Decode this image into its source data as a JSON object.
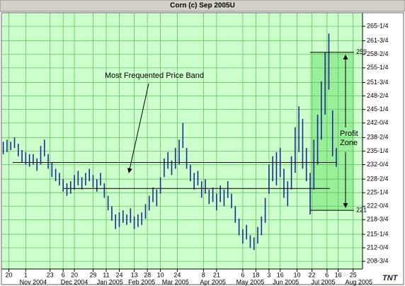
{
  "chart_data": {
    "type": "hilo",
    "title": "Corn (c) Sep 2005U",
    "color": "#1c2c94",
    "grid": true,
    "grid_color": "#5fc25f",
    "background": "#ccffcc",
    "x": [
      1,
      3,
      5,
      7,
      9,
      11,
      13,
      15,
      17,
      19,
      21,
      23,
      25,
      27,
      29,
      31,
      33,
      35,
      37,
      39,
      41,
      43,
      45,
      47,
      49,
      51,
      53,
      55,
      57,
      59,
      61,
      63,
      65,
      67,
      69,
      71,
      73,
      75,
      77,
      79,
      81,
      83,
      85,
      87,
      89,
      91,
      93,
      95,
      97,
      99,
      101,
      103,
      105,
      107,
      109,
      111,
      113,
      115,
      117,
      119,
      121,
      123,
      125,
      127,
      129,
      131,
      133,
      135,
      137,
      139,
      141,
      143,
      145,
      147,
      149,
      151,
      153,
      155,
      157,
      159,
      161,
      163,
      165,
      167,
      169,
      171,
      173,
      175,
      177,
      179
    ],
    "low": [
      234.5,
      235,
      235.5,
      236,
      234,
      232.5,
      232,
      231.5,
      232,
      230.5,
      232,
      234,
      231,
      229,
      228,
      227,
      225.5,
      224.5,
      225,
      226,
      227,
      226,
      227,
      228,
      226.5,
      225.5,
      227,
      224,
      221,
      218.5,
      216.5,
      217,
      218,
      217.5,
      218,
      216.5,
      217,
      217.5,
      219,
      221,
      223,
      222,
      225,
      229,
      231,
      229.5,
      231,
      232,
      236,
      231,
      228,
      226,
      227,
      224,
      225,
      222.5,
      223,
      221,
      223,
      222,
      224,
      221.5,
      218,
      215,
      213,
      214,
      212,
      211.5,
      213,
      215,
      218,
      225,
      228,
      227,
      229,
      224,
      222,
      226,
      230,
      235,
      231,
      228,
      220,
      226,
      232,
      238,
      244,
      250,
      234,
      231.5
    ],
    "high": [
      237.5,
      238,
      237.5,
      238.5,
      237,
      235.5,
      235,
      234.5,
      234.5,
      233.5,
      236.5,
      238,
      234.5,
      232.5,
      231,
      230,
      228.5,
      227.5,
      228,
      229.5,
      230.5,
      229,
      230,
      231,
      229.5,
      228.5,
      230,
      227.5,
      224.5,
      222,
      220,
      220.5,
      221,
      220,
      221.5,
      219.5,
      220,
      220.5,
      222.5,
      224.5,
      226.5,
      226,
      229,
      233.5,
      235,
      233,
      236,
      238,
      242,
      236,
      232,
      230,
      230.5,
      228,
      228.5,
      226,
      226.5,
      225,
      227,
      226,
      228,
      225,
      222,
      219,
      216.5,
      217.5,
      215,
      214.5,
      217,
      219.5,
      224,
      232,
      234,
      235,
      236,
      231,
      228,
      234,
      241,
      246,
      243,
      236,
      230,
      238,
      244,
      252,
      259,
      263.5,
      245,
      236
    ],
    "xlim": [
      0,
      193
    ],
    "xticks": [
      {
        "value": 4,
        "label": "20"
      },
      {
        "value": 13,
        "label": "1"
      },
      {
        "value": 26,
        "label": "23"
      },
      {
        "value": 33,
        "label": "6"
      },
      {
        "value": 39,
        "label": "20"
      },
      {
        "value": 49,
        "label": "29"
      },
      {
        "value": 56,
        "label": "11"
      },
      {
        "value": 63,
        "label": "24"
      },
      {
        "value": 71,
        "label": "13"
      },
      {
        "value": 78,
        "label": "28"
      },
      {
        "value": 85,
        "label": "10"
      },
      {
        "value": 94,
        "label": "24"
      },
      {
        "value": 108,
        "label": "8"
      },
      {
        "value": 115,
        "label": "21"
      },
      {
        "value": 129,
        "label": "6"
      },
      {
        "value": 136,
        "label": "18"
      },
      {
        "value": 143,
        "label": "3"
      },
      {
        "value": 149,
        "label": "16"
      },
      {
        "value": 158,
        "label": "10"
      },
      {
        "value": 166,
        "label": "22"
      },
      {
        "value": 174,
        "label": "6"
      },
      {
        "value": 180,
        "label": "16"
      },
      {
        "value": 188,
        "label": "25"
      }
    ],
    "month_ticks": [
      {
        "value": 17,
        "label": "Nov 2004"
      },
      {
        "value": 39,
        "label": "Dec 2004"
      },
      {
        "value": 58,
        "label": "Jan 2005"
      },
      {
        "value": 75,
        "label": "Feb 2005"
      },
      {
        "value": 93,
        "label": "Mar 2005"
      },
      {
        "value": 113,
        "label": "Apr 2005"
      },
      {
        "value": 133,
        "label": "May 2005"
      },
      {
        "value": 152,
        "label": "Jun 2005"
      },
      {
        "value": 172,
        "label": "Jul 2005"
      },
      {
        "value": 191,
        "label": "Aug 2005"
      }
    ],
    "ylim": [
      206.9,
      268.5
    ],
    "yticks": [
      {
        "value": 265.25,
        "label": "265-1/4"
      },
      {
        "value": 261.75,
        "label": "261-3/4"
      },
      {
        "value": 258.5,
        "label": "258-2/4"
      },
      {
        "value": 255.25,
        "label": "255-1/4"
      },
      {
        "value": 251.75,
        "label": "251-3/4"
      },
      {
        "value": 248.5,
        "label": "248-2/4"
      },
      {
        "value": 245.25,
        "label": "245-1/4"
      },
      {
        "value": 242,
        "label": "242-0/4"
      },
      {
        "value": 238.5,
        "label": "238-2/4"
      },
      {
        "value": 235.25,
        "label": "235-1/4"
      },
      {
        "value": 232,
        "label": "232-0/4"
      },
      {
        "value": 228.5,
        "label": "228-2/4"
      },
      {
        "value": 225.25,
        "label": "225-1/4"
      },
      {
        "value": 222,
        "label": "222-0/4"
      },
      {
        "value": 218.75,
        "label": "218-3/4"
      },
      {
        "value": 215.25,
        "label": "215-1/4"
      },
      {
        "value": 212,
        "label": "212-0/4"
      },
      {
        "value": 208.75,
        "label": "208-3/4"
      }
    ],
    "price_band": {
      "label": "Most Frequented Price Band",
      "upper": 232.5,
      "lower": 226.25
    },
    "profit_zone": {
      "label": [
        "Profit",
        "Zone"
      ],
      "high": 259,
      "low": 221,
      "color": "#99ee99"
    },
    "logo": "TNT"
  }
}
